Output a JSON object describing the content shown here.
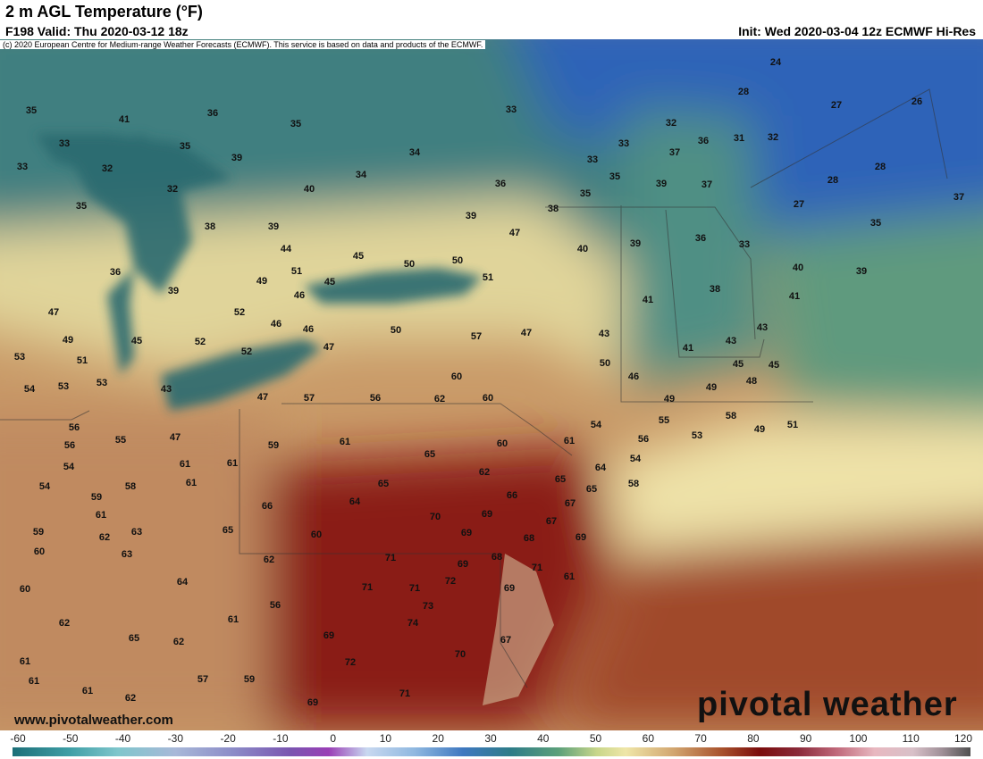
{
  "header": {
    "title": "2 m AGL Temperature (°F)",
    "valid": "F198 Valid: Thu 2020-03-12 18z",
    "init": "Init: Wed 2020-03-04 12z ECMWF Hi-Res",
    "copyright": "(c) 2020 European Centre for Medium-range Weather Forecasts (ECMWF). This service is based on data and products of the ECMWF."
  },
  "map": {
    "labels": [
      24,
      28,
      27,
      26,
      35,
      41,
      36,
      35,
      33,
      32,
      36,
      31,
      32,
      33,
      35,
      34,
      33,
      37,
      33,
      32,
      39,
      33,
      35,
      28,
      40,
      34,
      36,
      39,
      37,
      28,
      32,
      35,
      37,
      35,
      38,
      27,
      39,
      38,
      39,
      35,
      47,
      36,
      33,
      39,
      40,
      44,
      45,
      50,
      50,
      51,
      40,
      39,
      36,
      49,
      45,
      51,
      46,
      39,
      38,
      41,
      41,
      47,
      52,
      46,
      46,
      50,
      57,
      47,
      43,
      43,
      49,
      45,
      52,
      43,
      47,
      52,
      41,
      53,
      51,
      50,
      45,
      45,
      53,
      60,
      46,
      54,
      53,
      43,
      49,
      48,
      47,
      57,
      56,
      62,
      60,
      49,
      54,
      55,
      58,
      56,
      55,
      47,
      53,
      49,
      51,
      56,
      59,
      61,
      60,
      61,
      56,
      54,
      61,
      61,
      65,
      62,
      54,
      64,
      54,
      58,
      61,
      65,
      65,
      65,
      58,
      59,
      64,
      66,
      66,
      61,
      70,
      69,
      67,
      67,
      59,
      62,
      63,
      65,
      60,
      69,
      68,
      69,
      60,
      63,
      62,
      71,
      69,
      68,
      71,
      64,
      72,
      61,
      60,
      71,
      71,
      69,
      56,
      73,
      62,
      61,
      74,
      65,
      62,
      69,
      67,
      61,
      72,
      70,
      61,
      57,
      59,
      61,
      62,
      71,
      69
    ]
  },
  "footer": {
    "website": "www.pivotalweather.com",
    "logo": "pivotal weather"
  },
  "colorbar": {
    "ticks": [
      -60,
      -50,
      -40,
      -30,
      -20,
      -10,
      0,
      10,
      20,
      30,
      40,
      50,
      60,
      70,
      80,
      90,
      100,
      110,
      120
    ]
  }
}
